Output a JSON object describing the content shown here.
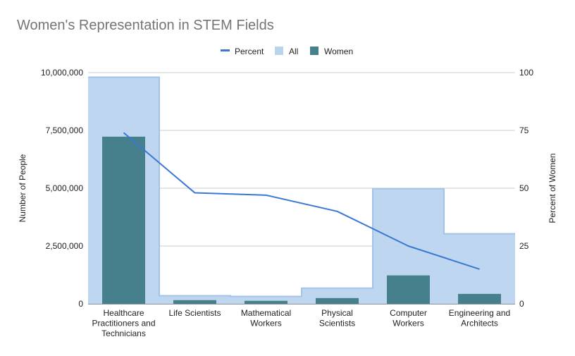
{
  "chart_data": {
    "type": "bar",
    "title": "Women's Representation in STEM Fields",
    "categories": [
      [
        "Healthcare",
        "Practitioners and",
        "Technicians"
      ],
      [
        "Life Scientists"
      ],
      [
        "Mathematical",
        "Workers"
      ],
      [
        "Physical",
        "Scientists"
      ],
      [
        "Computer",
        "Workers"
      ],
      [
        "Engineering and",
        "Architects"
      ]
    ],
    "series": [
      {
        "name": "All",
        "type": "stepped-area",
        "axis": "left",
        "color": "#bad4ee",
        "values": [
          9800000,
          350000,
          320000,
          680000,
          4980000,
          3030000
        ]
      },
      {
        "name": "Women",
        "type": "bar",
        "axis": "left",
        "color": "#45808c",
        "values": [
          7230000,
          160000,
          130000,
          250000,
          1230000,
          430000
        ]
      },
      {
        "name": "Percent",
        "type": "line",
        "axis": "right",
        "color": "#3a78d2",
        "values": [
          74,
          48,
          47,
          40,
          25,
          15
        ]
      }
    ],
    "legend_order": [
      "Percent",
      "All",
      "Women"
    ],
    "legend_position": "top-center",
    "ylabel": "Number of People",
    "y2label": "Percent of Women",
    "ylim": [
      0,
      10000000
    ],
    "y2lim": [
      0,
      100
    ],
    "yticks": [
      "0",
      "2,500,000",
      "5,000,000",
      "7,500,000",
      "10,000,000"
    ],
    "y2ticks": [
      "0",
      "25",
      "50",
      "75",
      "100"
    ],
    "grid": true
  }
}
